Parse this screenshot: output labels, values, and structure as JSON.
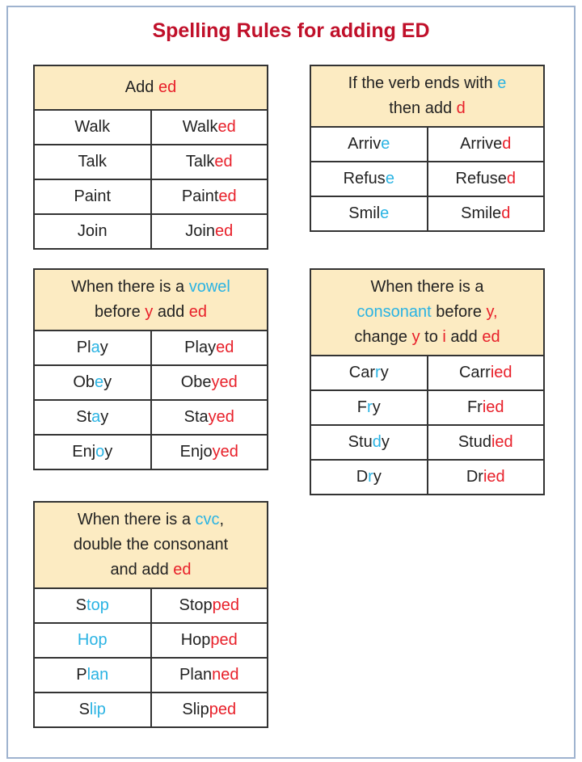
{
  "title": "Spelling Rules for adding ED",
  "colors": {
    "title": "#c0102a",
    "black": "#222222",
    "blue": "#2ab3e3",
    "red": "#e8202a",
    "header_bg": "#fcebc2"
  },
  "tables": [
    {
      "id": "add-ed",
      "header": [
        [
          "Add ",
          "k"
        ],
        [
          "ed",
          "r"
        ]
      ],
      "rows": [
        [
          [
            [
              "Walk",
              "k"
            ]
          ],
          [
            [
              "Walk",
              "k"
            ],
            [
              "ed",
              "r"
            ]
          ]
        ],
        [
          [
            [
              "Talk",
              "k"
            ]
          ],
          [
            [
              "Talk",
              "k"
            ],
            [
              "ed",
              "r"
            ]
          ]
        ],
        [
          [
            [
              "Paint",
              "k"
            ]
          ],
          [
            [
              "Paint",
              "k"
            ],
            [
              "ed",
              "r"
            ]
          ]
        ],
        [
          [
            [
              "Join",
              "k"
            ]
          ],
          [
            [
              "Join",
              "k"
            ],
            [
              "ed",
              "r"
            ]
          ]
        ]
      ]
    },
    {
      "id": "ends-with-e",
      "header": [
        [
          "If the verb ends with ",
          "k"
        ],
        [
          "e",
          "b"
        ],
        [
          "\nthen add ",
          "k"
        ],
        [
          "d",
          "r"
        ]
      ],
      "rows": [
        [
          [
            [
              "Arriv",
              "k"
            ],
            [
              "e",
              "b"
            ]
          ],
          [
            [
              "Arrive",
              "k"
            ],
            [
              "d",
              "r"
            ]
          ]
        ],
        [
          [
            [
              "Refus",
              "k"
            ],
            [
              "e",
              "b"
            ]
          ],
          [
            [
              "Refuse",
              "k"
            ],
            [
              "d",
              "r"
            ]
          ]
        ],
        [
          [
            [
              "Smil",
              "k"
            ],
            [
              "e",
              "b"
            ]
          ],
          [
            [
              "Smile",
              "k"
            ],
            [
              "d",
              "r"
            ]
          ]
        ]
      ]
    },
    {
      "id": "vowel-before-y",
      "header": [
        [
          "When there is a ",
          "k"
        ],
        [
          "vowel",
          "b"
        ],
        [
          "\nbefore ",
          "k"
        ],
        [
          "y",
          "r"
        ],
        [
          " add ",
          "k"
        ],
        [
          "ed",
          "r"
        ]
      ],
      "rows": [
        [
          [
            [
              "Pl",
              "k"
            ],
            [
              "a",
              "b"
            ],
            [
              "y",
              "k"
            ]
          ],
          [
            [
              "Play",
              "k"
            ],
            [
              "ed",
              "r"
            ]
          ]
        ],
        [
          [
            [
              "Ob",
              "k"
            ],
            [
              "e",
              "b"
            ],
            [
              "y",
              "k"
            ]
          ],
          [
            [
              "Obe",
              "k"
            ],
            [
              "yed",
              "r"
            ]
          ]
        ],
        [
          [
            [
              "St",
              "k"
            ],
            [
              "a",
              "b"
            ],
            [
              "y",
              "k"
            ]
          ],
          [
            [
              "Sta",
              "k"
            ],
            [
              "yed",
              "r"
            ]
          ]
        ],
        [
          [
            [
              "Enj",
              "k"
            ],
            [
              "o",
              "b"
            ],
            [
              "y",
              "k"
            ]
          ],
          [
            [
              "Enjo",
              "k"
            ],
            [
              "yed",
              "r"
            ]
          ]
        ]
      ]
    },
    {
      "id": "consonant-before-y",
      "header": [
        [
          "When there is a\n",
          "k"
        ],
        [
          "consonant",
          "b"
        ],
        [
          " before ",
          "k"
        ],
        [
          "y,",
          "r"
        ],
        [
          "\nchange ",
          "k"
        ],
        [
          "y",
          "r"
        ],
        [
          " to ",
          "k"
        ],
        [
          "i",
          "r"
        ],
        [
          " add ",
          "k"
        ],
        [
          "ed",
          "r"
        ]
      ],
      "rows": [
        [
          [
            [
              "Car",
              "k"
            ],
            [
              "r",
              "b"
            ],
            [
              "y",
              "k"
            ]
          ],
          [
            [
              "Carr",
              "k"
            ],
            [
              "ied",
              "r"
            ]
          ]
        ],
        [
          [
            [
              "F",
              "k"
            ],
            [
              "r",
              "b"
            ],
            [
              "y",
              "k"
            ]
          ],
          [
            [
              "Fr",
              "k"
            ],
            [
              "ied",
              "r"
            ]
          ]
        ],
        [
          [
            [
              "Stu",
              "k"
            ],
            [
              "d",
              "b"
            ],
            [
              "y",
              "k"
            ]
          ],
          [
            [
              "Stud",
              "k"
            ],
            [
              "ied",
              "r"
            ]
          ]
        ],
        [
          [
            [
              "D",
              "k"
            ],
            [
              "r",
              "b"
            ],
            [
              "y",
              "k"
            ]
          ],
          [
            [
              "Dr",
              "k"
            ],
            [
              "ied",
              "r"
            ]
          ]
        ]
      ]
    },
    {
      "id": "cvc",
      "header": [
        [
          "When there is a ",
          "k"
        ],
        [
          "cvc",
          "b"
        ],
        [
          ",\ndouble the consonant\nand add ",
          "k"
        ],
        [
          "ed",
          "r"
        ]
      ],
      "rows": [
        [
          [
            [
              "S",
              "k"
            ],
            [
              "top",
              "b"
            ]
          ],
          [
            [
              "Stop",
              "k"
            ],
            [
              "ped",
              "r"
            ]
          ]
        ],
        [
          [
            [
              "Hop",
              "b"
            ]
          ],
          [
            [
              "Hop",
              "k"
            ],
            [
              "ped",
              "r"
            ]
          ]
        ],
        [
          [
            [
              "P",
              "k"
            ],
            [
              "lan",
              "b"
            ]
          ],
          [
            [
              "Plan",
              "k"
            ],
            [
              "ned",
              "r"
            ]
          ]
        ],
        [
          [
            [
              "S",
              "k"
            ],
            [
              "lip",
              "b"
            ]
          ],
          [
            [
              "Slip",
              "k"
            ],
            [
              "ped",
              "r"
            ]
          ]
        ]
      ]
    }
  ]
}
